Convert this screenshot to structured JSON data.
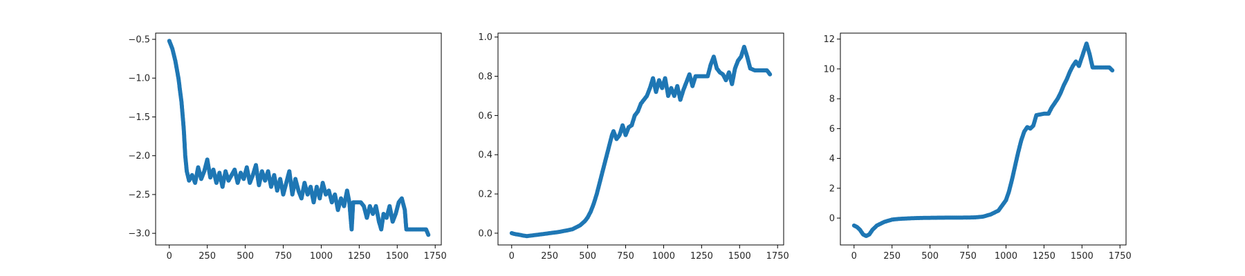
{
  "chart_data": [
    {
      "type": "scatter",
      "title": "",
      "xlabel": "",
      "ylabel": "",
      "xlim": [
        -90,
        1790
      ],
      "ylim": [
        -3.15,
        -0.42
      ],
      "xticks": [
        0,
        250,
        500,
        750,
        1000,
        1250,
        1500,
        1750
      ],
      "yticks": [
        -3.0,
        -2.5,
        -2.0,
        -1.5,
        -1.0,
        -0.5
      ],
      "ytick_labels": [
        "−3.0",
        "−2.5",
        "−2.0",
        "−1.5",
        "−1.0",
        "−0.5"
      ],
      "marker_color": "#1f77b4",
      "grid": false,
      "series": [
        {
          "points": [
            [
              0,
              -0.52
            ],
            [
              20,
              -0.62
            ],
            [
              40,
              -0.78
            ],
            [
              60,
              -1.0
            ],
            [
              80,
              -1.3
            ],
            [
              95,
              -1.65
            ],
            [
              105,
              -2.0
            ],
            [
              115,
              -2.2
            ],
            [
              130,
              -2.32
            ],
            [
              150,
              -2.25
            ],
            [
              170,
              -2.35
            ],
            [
              190,
              -2.15
            ],
            [
              210,
              -2.3
            ],
            [
              230,
              -2.2
            ],
            [
              250,
              -2.05
            ],
            [
              270,
              -2.28
            ],
            [
              290,
              -2.18
            ],
            [
              310,
              -2.35
            ],
            [
              330,
              -2.22
            ],
            [
              350,
              -2.4
            ],
            [
              370,
              -2.2
            ],
            [
              390,
              -2.32
            ],
            [
              410,
              -2.25
            ],
            [
              430,
              -2.18
            ],
            [
              450,
              -2.35
            ],
            [
              470,
              -2.22
            ],
            [
              490,
              -2.3
            ],
            [
              510,
              -2.15
            ],
            [
              530,
              -2.35
            ],
            [
              550,
              -2.25
            ],
            [
              570,
              -2.12
            ],
            [
              590,
              -2.38
            ],
            [
              610,
              -2.2
            ],
            [
              630,
              -2.32
            ],
            [
              650,
              -2.2
            ],
            [
              670,
              -2.4
            ],
            [
              690,
              -2.25
            ],
            [
              710,
              -2.45
            ],
            [
              730,
              -2.3
            ],
            [
              750,
              -2.5
            ],
            [
              770,
              -2.35
            ],
            [
              790,
              -2.2
            ],
            [
              810,
              -2.5
            ],
            [
              830,
              -2.3
            ],
            [
              850,
              -2.45
            ],
            [
              870,
              -2.55
            ],
            [
              890,
              -2.35
            ],
            [
              910,
              -2.5
            ],
            [
              930,
              -2.4
            ],
            [
              950,
              -2.6
            ],
            [
              970,
              -2.4
            ],
            [
              990,
              -2.55
            ],
            [
              1010,
              -2.35
            ],
            [
              1030,
              -2.5
            ],
            [
              1050,
              -2.45
            ],
            [
              1070,
              -2.6
            ],
            [
              1090,
              -2.5
            ],
            [
              1110,
              -2.7
            ],
            [
              1130,
              -2.55
            ],
            [
              1150,
              -2.65
            ],
            [
              1170,
              -2.45
            ],
            [
              1185,
              -2.6
            ],
            [
              1200,
              -2.95
            ],
            [
              1210,
              -2.6
            ],
            [
              1230,
              -2.6
            ],
            [
              1260,
              -2.6
            ],
            [
              1280,
              -2.65
            ],
            [
              1300,
              -2.8
            ],
            [
              1320,
              -2.65
            ],
            [
              1340,
              -2.75
            ],
            [
              1360,
              -2.65
            ],
            [
              1380,
              -2.85
            ],
            [
              1395,
              -2.95
            ],
            [
              1410,
              -2.75
            ],
            [
              1430,
              -2.8
            ],
            [
              1450,
              -2.65
            ],
            [
              1470,
              -2.85
            ],
            [
              1490,
              -2.75
            ],
            [
              1510,
              -2.6
            ],
            [
              1530,
              -2.55
            ],
            [
              1550,
              -2.7
            ],
            [
              1560,
              -2.95
            ],
            [
              1600,
              -2.95
            ],
            [
              1650,
              -2.95
            ],
            [
              1690,
              -2.95
            ],
            [
              1705,
              -3.02
            ]
          ]
        }
      ]
    },
    {
      "type": "scatter",
      "title": "",
      "xlabel": "",
      "ylabel": "",
      "xlim": [
        -90,
        1790
      ],
      "ylim": [
        -0.06,
        1.02
      ],
      "xticks": [
        0,
        250,
        500,
        750,
        1000,
        1250,
        1500,
        1750
      ],
      "yticks": [
        0.0,
        0.2,
        0.4,
        0.6,
        0.8,
        1.0
      ],
      "ytick_labels": [
        "0.0",
        "0.2",
        "0.4",
        "0.6",
        "0.8",
        "1.0"
      ],
      "marker_color": "#1f77b4",
      "grid": false,
      "series": [
        {
          "points": [
            [
              0,
              0.0
            ],
            [
              25,
              -0.005
            ],
            [
              50,
              -0.008
            ],
            [
              75,
              -0.012
            ],
            [
              100,
              -0.015
            ],
            [
              150,
              -0.01
            ],
            [
              200,
              -0.005
            ],
            [
              250,
              0.0
            ],
            [
              300,
              0.005
            ],
            [
              350,
              0.012
            ],
            [
              400,
              0.02
            ],
            [
              450,
              0.04
            ],
            [
              480,
              0.06
            ],
            [
              500,
              0.08
            ],
            [
              520,
              0.11
            ],
            [
              540,
              0.15
            ],
            [
              560,
              0.2
            ],
            [
              580,
              0.26
            ],
            [
              600,
              0.32
            ],
            [
              620,
              0.38
            ],
            [
              640,
              0.44
            ],
            [
              660,
              0.5
            ],
            [
              670,
              0.52
            ],
            [
              690,
              0.48
            ],
            [
              710,
              0.5
            ],
            [
              730,
              0.55
            ],
            [
              750,
              0.5
            ],
            [
              770,
              0.54
            ],
            [
              790,
              0.55
            ],
            [
              810,
              0.6
            ],
            [
              830,
              0.62
            ],
            [
              850,
              0.66
            ],
            [
              870,
              0.68
            ],
            [
              890,
              0.7
            ],
            [
              910,
              0.74
            ],
            [
              930,
              0.79
            ],
            [
              950,
              0.72
            ],
            [
              970,
              0.78
            ],
            [
              990,
              0.74
            ],
            [
              1010,
              0.79
            ],
            [
              1030,
              0.7
            ],
            [
              1050,
              0.74
            ],
            [
              1070,
              0.7
            ],
            [
              1090,
              0.75
            ],
            [
              1110,
              0.68
            ],
            [
              1130,
              0.73
            ],
            [
              1150,
              0.77
            ],
            [
              1170,
              0.81
            ],
            [
              1190,
              0.75
            ],
            [
              1210,
              0.8
            ],
            [
              1250,
              0.8
            ],
            [
              1290,
              0.8
            ],
            [
              1310,
              0.86
            ],
            [
              1330,
              0.9
            ],
            [
              1350,
              0.84
            ],
            [
              1370,
              0.82
            ],
            [
              1390,
              0.81
            ],
            [
              1410,
              0.78
            ],
            [
              1430,
              0.82
            ],
            [
              1450,
              0.76
            ],
            [
              1470,
              0.84
            ],
            [
              1490,
              0.88
            ],
            [
              1510,
              0.9
            ],
            [
              1530,
              0.95
            ],
            [
              1550,
              0.9
            ],
            [
              1570,
              0.84
            ],
            [
              1600,
              0.83
            ],
            [
              1650,
              0.83
            ],
            [
              1680,
              0.83
            ],
            [
              1700,
              0.81
            ]
          ]
        }
      ]
    },
    {
      "type": "scatter",
      "title": "",
      "xlabel": "",
      "ylabel": "",
      "xlim": [
        -90,
        1790
      ],
      "ylim": [
        -1.8,
        12.4
      ],
      "xticks": [
        0,
        250,
        500,
        750,
        1000,
        1250,
        1500,
        1750
      ],
      "yticks": [
        0,
        2,
        4,
        6,
        8,
        10,
        12
      ],
      "ytick_labels": [
        "0",
        "2",
        "4",
        "6",
        "8",
        "10",
        "12"
      ],
      "marker_color": "#1f77b4",
      "grid": false,
      "series": [
        {
          "points": [
            [
              0,
              -0.5
            ],
            [
              20,
              -0.6
            ],
            [
              40,
              -0.8
            ],
            [
              60,
              -1.1
            ],
            [
              80,
              -1.2
            ],
            [
              100,
              -1.1
            ],
            [
              120,
              -0.8
            ],
            [
              150,
              -0.5
            ],
            [
              200,
              -0.25
            ],
            [
              250,
              -0.1
            ],
            [
              300,
              -0.05
            ],
            [
              400,
              0.0
            ],
            [
              500,
              0.02
            ],
            [
              600,
              0.03
            ],
            [
              700,
              0.03
            ],
            [
              800,
              0.05
            ],
            [
              850,
              0.1
            ],
            [
              900,
              0.25
            ],
            [
              950,
              0.5
            ],
            [
              1000,
              1.2
            ],
            [
              1020,
              1.8
            ],
            [
              1040,
              2.6
            ],
            [
              1060,
              3.5
            ],
            [
              1080,
              4.4
            ],
            [
              1100,
              5.2
            ],
            [
              1120,
              5.8
            ],
            [
              1140,
              6.1
            ],
            [
              1160,
              6.0
            ],
            [
              1180,
              6.2
            ],
            [
              1200,
              6.9
            ],
            [
              1250,
              7.0
            ],
            [
              1280,
              7.0
            ],
            [
              1300,
              7.4
            ],
            [
              1320,
              7.7
            ],
            [
              1340,
              8.0
            ],
            [
              1360,
              8.4
            ],
            [
              1380,
              8.9
            ],
            [
              1400,
              9.3
            ],
            [
              1420,
              9.8
            ],
            [
              1440,
              10.2
            ],
            [
              1460,
              10.5
            ],
            [
              1480,
              10.2
            ],
            [
              1500,
              10.8
            ],
            [
              1520,
              11.4
            ],
            [
              1530,
              11.7
            ],
            [
              1550,
              11.0
            ],
            [
              1570,
              10.1
            ],
            [
              1600,
              10.1
            ],
            [
              1650,
              10.1
            ],
            [
              1680,
              10.1
            ],
            [
              1700,
              9.9
            ]
          ]
        }
      ]
    }
  ]
}
